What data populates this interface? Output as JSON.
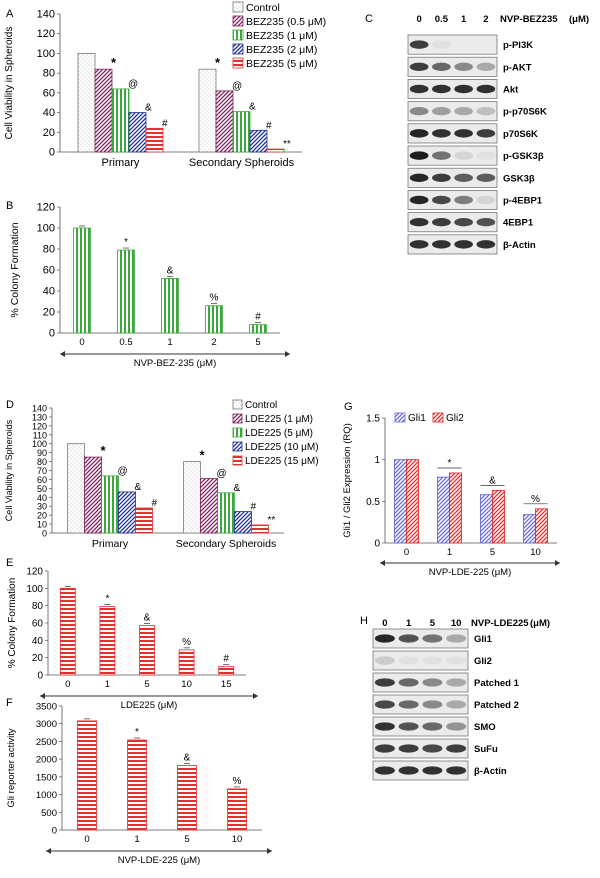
{
  "panels": {
    "A": "A",
    "B": "B",
    "C": "C",
    "D": "D",
    "E": "E",
    "F": "F",
    "G": "G",
    "H": "H"
  },
  "patterns": [
    "dots",
    "diag",
    "vert",
    "diagblue",
    "horiz"
  ],
  "colors": {
    "dots": "#b0b0b0",
    "diag": "#7a1f5a",
    "green": "#3aa83a",
    "blue": "#1f2f8f",
    "red": "#e03030",
    "gli1": "#6a6ad0",
    "gli2": "#e03030"
  },
  "chart_data": [
    {
      "panel": "A",
      "type": "bar",
      "ylabel": "Cell Viability in Spheroids",
      "ylim": [
        0,
        140
      ],
      "yticks": [
        0,
        20,
        40,
        60,
        80,
        100,
        120,
        140
      ],
      "groups": [
        "Primary",
        "Secondary Spheroids"
      ],
      "series": [
        {
          "name": "Control",
          "pattern": "dots",
          "values": [
            100,
            84
          ],
          "marks": [
            "",
            "*"
          ]
        },
        {
          "name": "BEZ235 (0.5 μM)",
          "pattern": "diag",
          "values": [
            84,
            62
          ],
          "marks": [
            "*",
            "@"
          ]
        },
        {
          "name": "BEZ235 (1 μM)",
          "pattern": "vert",
          "values": [
            64,
            41
          ],
          "marks": [
            "@",
            "&"
          ]
        },
        {
          "name": "BEZ235 (2 μM)",
          "pattern": "diagblue",
          "values": [
            40,
            22
          ],
          "marks": [
            "&",
            "#"
          ]
        },
        {
          "name": "BEZ235 (5 μM)",
          "pattern": "horiz",
          "values": [
            24,
            3
          ],
          "marks": [
            "#",
            "**"
          ]
        }
      ]
    },
    {
      "panel": "B",
      "type": "bar",
      "ylabel": "% Colony Formation",
      "xlabel": "NVP-BEZ-235 (μM)",
      "ylim": [
        0,
        120
      ],
      "yticks": [
        0,
        20,
        40,
        60,
        80,
        100,
        120
      ],
      "categories": [
        "0",
        "0.5",
        "1",
        "2",
        "5"
      ],
      "values": [
        100,
        79,
        52,
        26,
        8
      ],
      "marks": [
        "",
        "*",
        "&",
        "%",
        "#"
      ],
      "pattern": "vert",
      "color": "green"
    },
    {
      "panel": "D",
      "type": "bar",
      "ylabel": "Cell Viability in Spheroids",
      "ylim": [
        0,
        140
      ],
      "yticks": [
        0,
        10,
        20,
        30,
        40,
        50,
        60,
        70,
        80,
        90,
        100,
        110,
        120,
        130,
        140
      ],
      "groups": [
        "Primary",
        "Secondary Spheroids"
      ],
      "series": [
        {
          "name": "Control",
          "pattern": "dots",
          "values": [
            100,
            80
          ],
          "marks": [
            "",
            "*"
          ]
        },
        {
          "name": "LDE225 (1 μM)",
          "pattern": "diag",
          "values": [
            85,
            61
          ],
          "marks": [
            "*",
            "@"
          ]
        },
        {
          "name": "LDE225 (5 μM)",
          "pattern": "vert",
          "values": [
            64,
            45
          ],
          "marks": [
            "@",
            "&"
          ]
        },
        {
          "name": "LDE225 (10 μM)",
          "pattern": "diagblue",
          "values": [
            46,
            24
          ],
          "marks": [
            "&",
            "#"
          ]
        },
        {
          "name": "LDE225 (15 μM)",
          "pattern": "horiz",
          "values": [
            28,
            9
          ],
          "marks": [
            "#",
            "**"
          ]
        }
      ]
    },
    {
      "panel": "E",
      "type": "bar",
      "ylabel": "% Colony Formation",
      "xlabel": "LDE225 (μM)",
      "ylim": [
        0,
        120
      ],
      "yticks": [
        0,
        20,
        40,
        60,
        80,
        100,
        120
      ],
      "categories": [
        "0",
        "1",
        "5",
        "10",
        "15"
      ],
      "values": [
        100,
        79,
        57,
        29,
        10
      ],
      "marks": [
        "",
        "*",
        "&",
        "%",
        "#"
      ],
      "pattern": "horiz",
      "color": "red"
    },
    {
      "panel": "F",
      "type": "bar",
      "ylabel": "Gli reporter activity",
      "xlabel": "NVP-LDE-225 (μM)",
      "ylim": [
        0,
        3500
      ],
      "yticks": [
        0,
        500,
        1000,
        1500,
        2000,
        2500,
        3000,
        3500
      ],
      "categories": [
        "0",
        "1",
        "5",
        "10"
      ],
      "values": [
        3080,
        2540,
        1820,
        1160
      ],
      "marks": [
        "",
        "*",
        "&",
        "%"
      ],
      "pattern": "horiz",
      "color": "red"
    },
    {
      "panel": "G",
      "type": "bar",
      "ylabel": "Gli1 / Gli2 Expression (RQ)",
      "xlabel": "NVP-LDE-225 (μM)",
      "ylim": [
        0,
        1.5
      ],
      "yticks": [
        "0",
        "0.5",
        "1",
        "1.5"
      ],
      "categories": [
        "0",
        "1",
        "5",
        "10"
      ],
      "series": [
        {
          "name": "Gli1",
          "pattern": "gli1",
          "values": [
            1.0,
            0.79,
            0.58,
            0.34
          ]
        },
        {
          "name": "Gli2",
          "pattern": "gli2",
          "values": [
            1.0,
            0.84,
            0.63,
            0.41
          ]
        }
      ],
      "marks": [
        "",
        "*",
        "&",
        "%"
      ]
    }
  ],
  "blots": [
    {
      "panel": "C",
      "lanes": [
        "0",
        "0.5",
        "1",
        "2"
      ],
      "treatment": "NVP-BEZ235",
      "unit": "(μM)",
      "rows": [
        {
          "label": "p-PI3K",
          "bands": [
            0.8,
            0.05,
            0.02,
            0.02
          ]
        },
        {
          "label": "p-AKT",
          "bands": [
            0.8,
            0.6,
            0.45,
            0.3
          ]
        },
        {
          "label": "Akt",
          "bands": [
            0.85,
            0.85,
            0.85,
            0.85
          ]
        },
        {
          "label": "p-p70S6K",
          "bands": [
            0.45,
            0.35,
            0.3,
            0.2
          ]
        },
        {
          "label": "p70S6K",
          "bands": [
            0.9,
            0.85,
            0.85,
            0.8
          ]
        },
        {
          "label": "p-GSK3β",
          "bands": [
            0.95,
            0.55,
            0.1,
            0.05
          ]
        },
        {
          "label": "GSK3β",
          "bands": [
            0.9,
            0.8,
            0.65,
            0.65
          ]
        },
        {
          "label": "p-4EBP1",
          "bands": [
            0.9,
            0.75,
            0.5,
            0.1
          ]
        },
        {
          "label": "4EBP1",
          "bands": [
            0.85,
            0.8,
            0.75,
            0.7
          ]
        },
        {
          "label": "β-Actin",
          "bands": [
            0.85,
            0.85,
            0.85,
            0.85
          ]
        }
      ]
    },
    {
      "panel": "H",
      "lanes": [
        "0",
        "1",
        "5",
        "10"
      ],
      "treatment": "NVP-LDE225",
      "unit": "(μM)",
      "rows": [
        {
          "label": "Gli1",
          "bands": [
            0.9,
            0.7,
            0.55,
            0.3
          ]
        },
        {
          "label": "Gli2",
          "bands": [
            0.15,
            0.05,
            0.05,
            0.05
          ]
        },
        {
          "label": "Patched 1",
          "bands": [
            0.8,
            0.6,
            0.45,
            0.3
          ]
        },
        {
          "label": "Patched 2",
          "bands": [
            0.75,
            0.6,
            0.45,
            0.3
          ]
        },
        {
          "label": "SMO",
          "bands": [
            0.85,
            0.7,
            0.6,
            0.4
          ]
        },
        {
          "label": "SuFu",
          "bands": [
            0.8,
            0.8,
            0.75,
            0.8
          ]
        },
        {
          "label": "β-Actin",
          "bands": [
            0.85,
            0.85,
            0.85,
            0.85
          ]
        }
      ]
    }
  ]
}
